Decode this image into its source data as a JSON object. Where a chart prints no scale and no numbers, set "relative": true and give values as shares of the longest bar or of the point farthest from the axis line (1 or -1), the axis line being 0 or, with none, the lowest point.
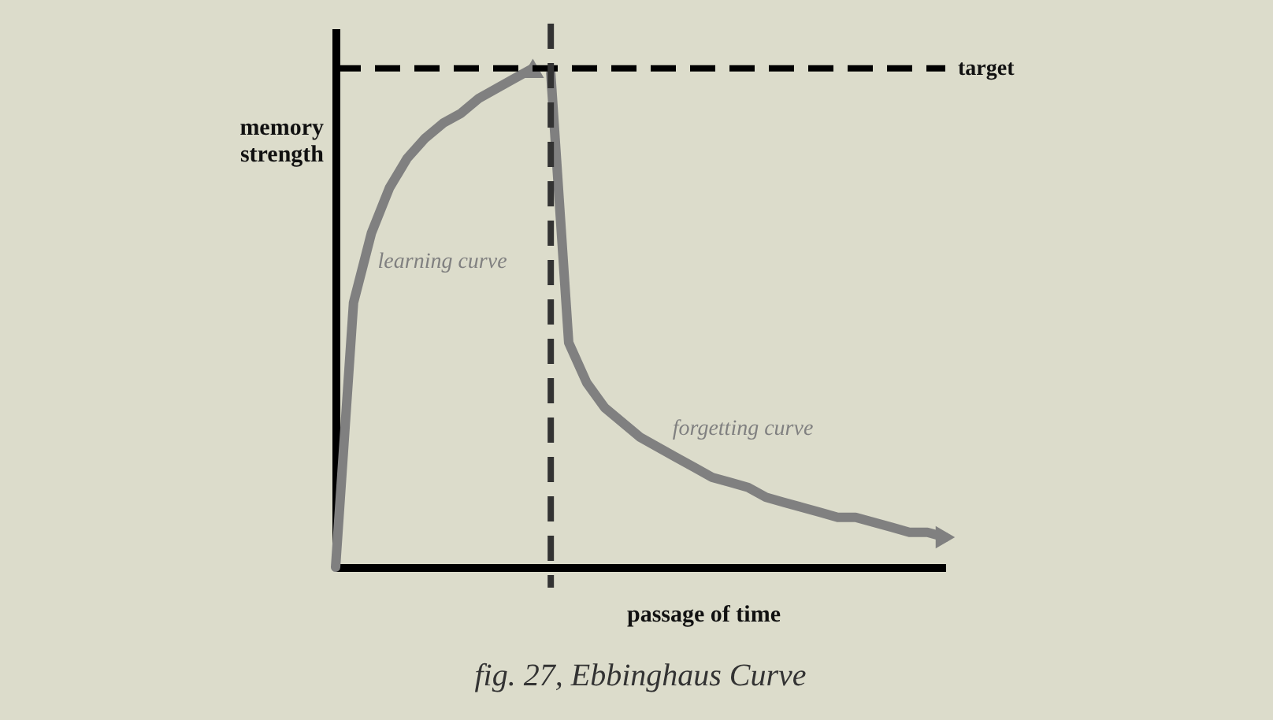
{
  "chart_data": {
    "type": "line",
    "relative": true,
    "title": "fig. 27, Ebbinghaus Curve",
    "xlabel": "passage of time",
    "ylabel": "memory strength",
    "tick_labels": false,
    "grid": false,
    "marker": "none",
    "line_style": "solid",
    "categories": [
      null,
      null,
      null,
      null,
      null,
      null,
      null,
      null,
      null,
      null,
      null,
      null,
      null,
      null,
      null,
      null,
      null,
      null,
      null,
      null,
      null,
      null,
      null,
      null,
      null,
      null,
      null,
      null,
      null,
      null,
      null,
      null,
      null,
      null,
      null
    ],
    "series": [
      {
        "name": "learning curve",
        "color": "#808080",
        "values": [
          0,
          0.53,
          0.67,
          0.76,
          0.82,
          0.86,
          0.89,
          0.91,
          0.94,
          0.96,
          0.98,
          1.0,
          null,
          null,
          null,
          null,
          null,
          null,
          null,
          null,
          null,
          null,
          null,
          null,
          null,
          null,
          null,
          null,
          null,
          null,
          null,
          null,
          null,
          null,
          null
        ]
      },
      {
        "name": "forgetting curve",
        "color": "#808080",
        "values": [
          null,
          null,
          null,
          null,
          null,
          null,
          null,
          null,
          null,
          null,
          null,
          null,
          0.99,
          0.45,
          0.37,
          0.32,
          0.29,
          0.26,
          0.24,
          0.22,
          0.2,
          0.18,
          0.17,
          0.16,
          0.14,
          0.13,
          0.12,
          0.11,
          0.1,
          0.1,
          0.09,
          0.08,
          0.07,
          0.07,
          0.06
        ]
      }
    ],
    "ref_lines": [
      {
        "axis": "y",
        "value": 1.0,
        "label": "target",
        "color": "#000000",
        "line_style": "dashed"
      }
    ]
  }
}
